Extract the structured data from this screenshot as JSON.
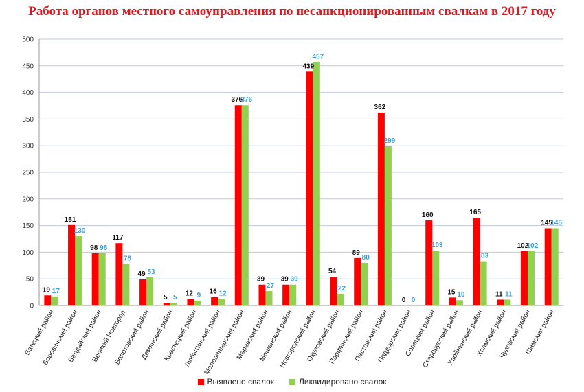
{
  "title": "Работа органов местного самоуправления по несанкционированным свалкам в 2017 году",
  "colors": {
    "series1": "#ff0000",
    "series2": "#92d050",
    "grid": "#c0c8e0",
    "title": "#e8141c",
    "label2": "#3aa0d8"
  },
  "chart_data": {
    "type": "bar",
    "title": "Работа органов местного самоуправления по несанкционированным свалкам в 2017 году",
    "xlabel": "",
    "ylabel": "",
    "ylim": [
      0,
      500
    ],
    "yticks": [
      0,
      50,
      100,
      150,
      200,
      250,
      300,
      350,
      400,
      450,
      500
    ],
    "grid": true,
    "legend_position": "bottom",
    "categories": [
      "Батецкий район",
      "Боровичский район",
      "Валдайский район",
      "Великий Новгород",
      "Волотовский район",
      "Демянский район",
      "Крестецкий район",
      "Любытинский район",
      "Маловишерский район",
      "Маревский район",
      "Мошенской район",
      "Новгородский район",
      "Окуловский район",
      "Парфинский район",
      "Пестовский район",
      "Поддорский район",
      "Солецкий район",
      "Старорусский район",
      "Хвойнинский район",
      "Холмский район",
      "Чудовский район",
      "Шимский район"
    ],
    "series": [
      {
        "name": "Выявлено свалок",
        "values": [
          19,
          151,
          98,
          117,
          49,
          5,
          12,
          16,
          376,
          39,
          39,
          439,
          54,
          89,
          362,
          0,
          160,
          15,
          165,
          11,
          102,
          145
        ]
      },
      {
        "name": "Ликвидировано свалок",
        "values": [
          17,
          130,
          98,
          78,
          53,
          5,
          9,
          12,
          376,
          27,
          39,
          457,
          22,
          80,
          299,
          0,
          103,
          10,
          83,
          11,
          102,
          145
        ]
      }
    ]
  }
}
